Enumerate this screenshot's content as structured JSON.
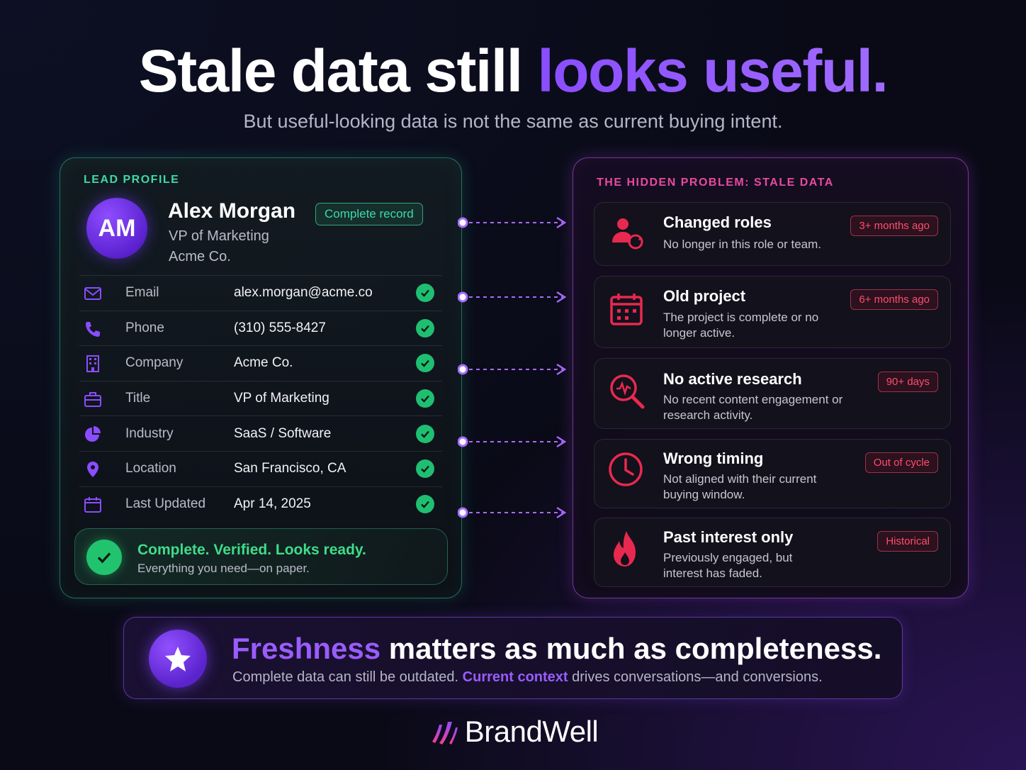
{
  "headline": {
    "part1": "Stale data still ",
    "part2": "looks useful."
  },
  "subhead": "But useful-looking data is not the same as current buying intent.",
  "lead_profile": {
    "label": "LEAD PROFILE",
    "initials": "AM",
    "name": "Alex Morgan",
    "title": "VP of Marketing",
    "company": "Acme Co.",
    "badge": "Complete record",
    "fields": [
      {
        "icon": "mail-icon",
        "label": "Email",
        "value": "alex.morgan@acme.co"
      },
      {
        "icon": "phone-icon",
        "label": "Phone",
        "value": "(310) 555-8427"
      },
      {
        "icon": "building-icon",
        "label": "Company",
        "value": "Acme Co."
      },
      {
        "icon": "briefcase-icon",
        "label": "Title",
        "value": "VP of Marketing"
      },
      {
        "icon": "pie-chart-icon",
        "label": "Industry",
        "value": "SaaS / Software"
      },
      {
        "icon": "location-pin-icon",
        "label": "Location",
        "value": "San Francisco, CA"
      },
      {
        "icon": "calendar-icon",
        "label": "Last Updated",
        "value": "Apr 14, 2025"
      }
    ],
    "status_title": "Complete. Verified. Looks ready.",
    "status_sub": "Everything you need—on paper."
  },
  "hidden_problem": {
    "label": "THE HIDDEN PROBLEM: STALE DATA",
    "items": [
      {
        "icon": "user-refresh-icon",
        "title": "Changed roles",
        "desc": "No longer in this role or team.",
        "badge": "3+ months ago"
      },
      {
        "icon": "calendar-icon",
        "title": "Old project",
        "desc": "The project is complete or no longer active.",
        "badge": "6+ months ago"
      },
      {
        "icon": "search-analytics-icon",
        "title": "No active research",
        "desc": "No recent content engagement or research activity.",
        "badge": "90+ days"
      },
      {
        "icon": "clock-icon",
        "title": "Wrong timing",
        "desc": "Not aligned with their current buying window.",
        "badge": "Out of cycle"
      },
      {
        "icon": "flame-icon",
        "title": "Past interest only",
        "desc": "Previously engaged, but interest has faded.",
        "badge": "Historical"
      }
    ]
  },
  "banner": {
    "title_accent": "Freshness",
    "title_rest": " matters as much as completeness.",
    "sub_part1": "Complete data can still be outdated. ",
    "sub_accent": "Current context",
    "sub_part2": " drives conversations—and conversions."
  },
  "brand": {
    "name": "BrandWell"
  },
  "colors": {
    "accent_purple": "#8a4dff",
    "success_green": "#3fd9a6",
    "warning_red": "#ff4d6d",
    "problem_pink": "#e84aa0"
  }
}
